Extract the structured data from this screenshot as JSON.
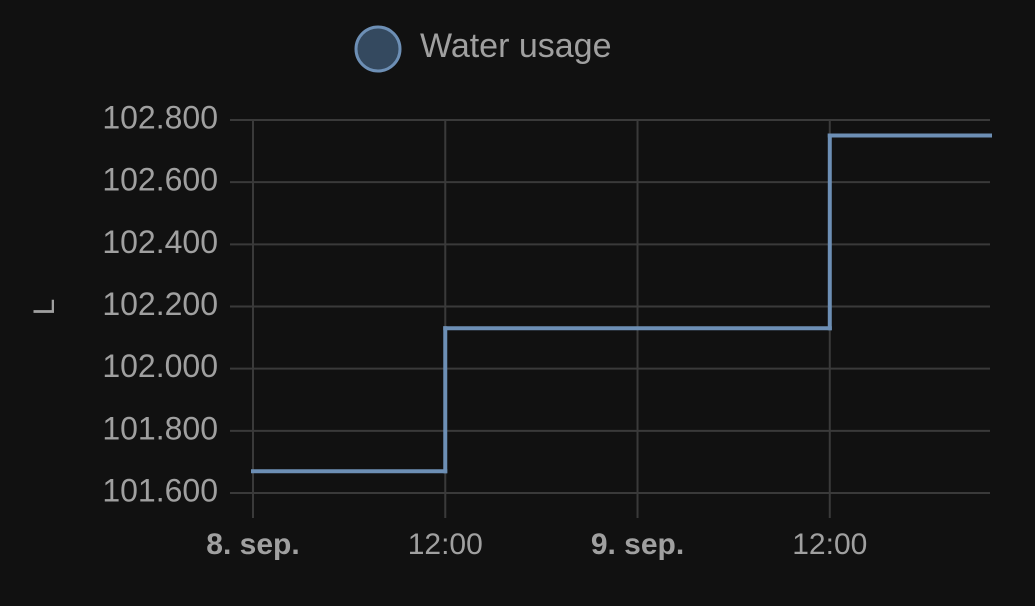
{
  "chart_data": {
    "type": "line",
    "step": "after",
    "y_label": "L",
    "x": [
      0,
      12,
      36
    ],
    "xlim": [
      0,
      46
    ],
    "xticks": [
      {
        "value": 0,
        "label": "8. sep."
      },
      {
        "value": 12,
        "label": "12:00"
      },
      {
        "value": 24,
        "label": "9. sep."
      },
      {
        "value": 36,
        "label": "12:00"
      }
    ],
    "series": [
      {
        "name": "Water usage",
        "color": "#6d8fb5",
        "values": [
          101670,
          102130,
          102750
        ]
      }
    ],
    "ylim": [
      101600,
      102800
    ],
    "yticks": [
      {
        "value": 101600,
        "label": "101.600"
      },
      {
        "value": 101800,
        "label": "101.800"
      },
      {
        "value": 102000,
        "label": "102.000"
      },
      {
        "value": 102200,
        "label": "102.200"
      },
      {
        "value": 102400,
        "label": "102.400"
      },
      {
        "value": 102600,
        "label": "102.600"
      },
      {
        "value": 102800,
        "label": "102.800"
      }
    ],
    "grid": true
  }
}
